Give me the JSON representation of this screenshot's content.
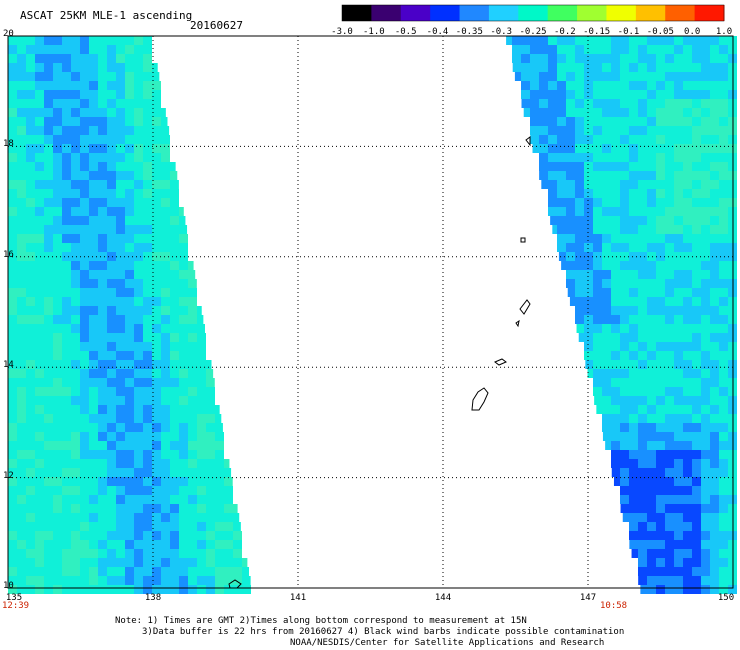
{
  "header": {
    "title": "ASCAT 25KM MLE-1 ascending",
    "date": "20160627"
  },
  "colorbar": {
    "ticks": [
      "-3.0",
      "-1.0",
      "-0.5",
      "-0.4",
      "-0.35",
      "-0.3",
      "-0.25",
      "-0.2",
      "-0.15",
      "-0.1",
      "-0.05",
      "0.0",
      "1.0"
    ],
    "colors": [
      "#000000",
      "#3a0070",
      "#4a00c8",
      "#0030ff",
      "#2088ff",
      "#20d0ff",
      "#00f8c8",
      "#40ff60",
      "#a0ff30",
      "#f0ff00",
      "#ffc000",
      "#ff6000",
      "#ff1800"
    ]
  },
  "map": {
    "lat_labels": [
      "20",
      "18",
      "16",
      "14",
      "12",
      "10"
    ],
    "lon_labels": [
      "135",
      "138",
      "141",
      "144",
      "147",
      "150"
    ],
    "time_left": "12:39",
    "time_right": "10:58",
    "swath_colors": {
      "base": "#10f0d8",
      "light": "#30f0c0",
      "mid": "#18c8f8",
      "blue": "#1890ff",
      "deep": "#0848ff"
    }
  },
  "notes": {
    "line1": "Note: 1) Times are GMT 2)Times along bottom correspond to measurement at 15N",
    "line2": "3)Data buffer is 22 hrs from 20160627 4) Black wind barbs indicate possible contamination",
    "line3": "NOAA/NESDIS/Center for Satellite Applications and Research"
  }
}
